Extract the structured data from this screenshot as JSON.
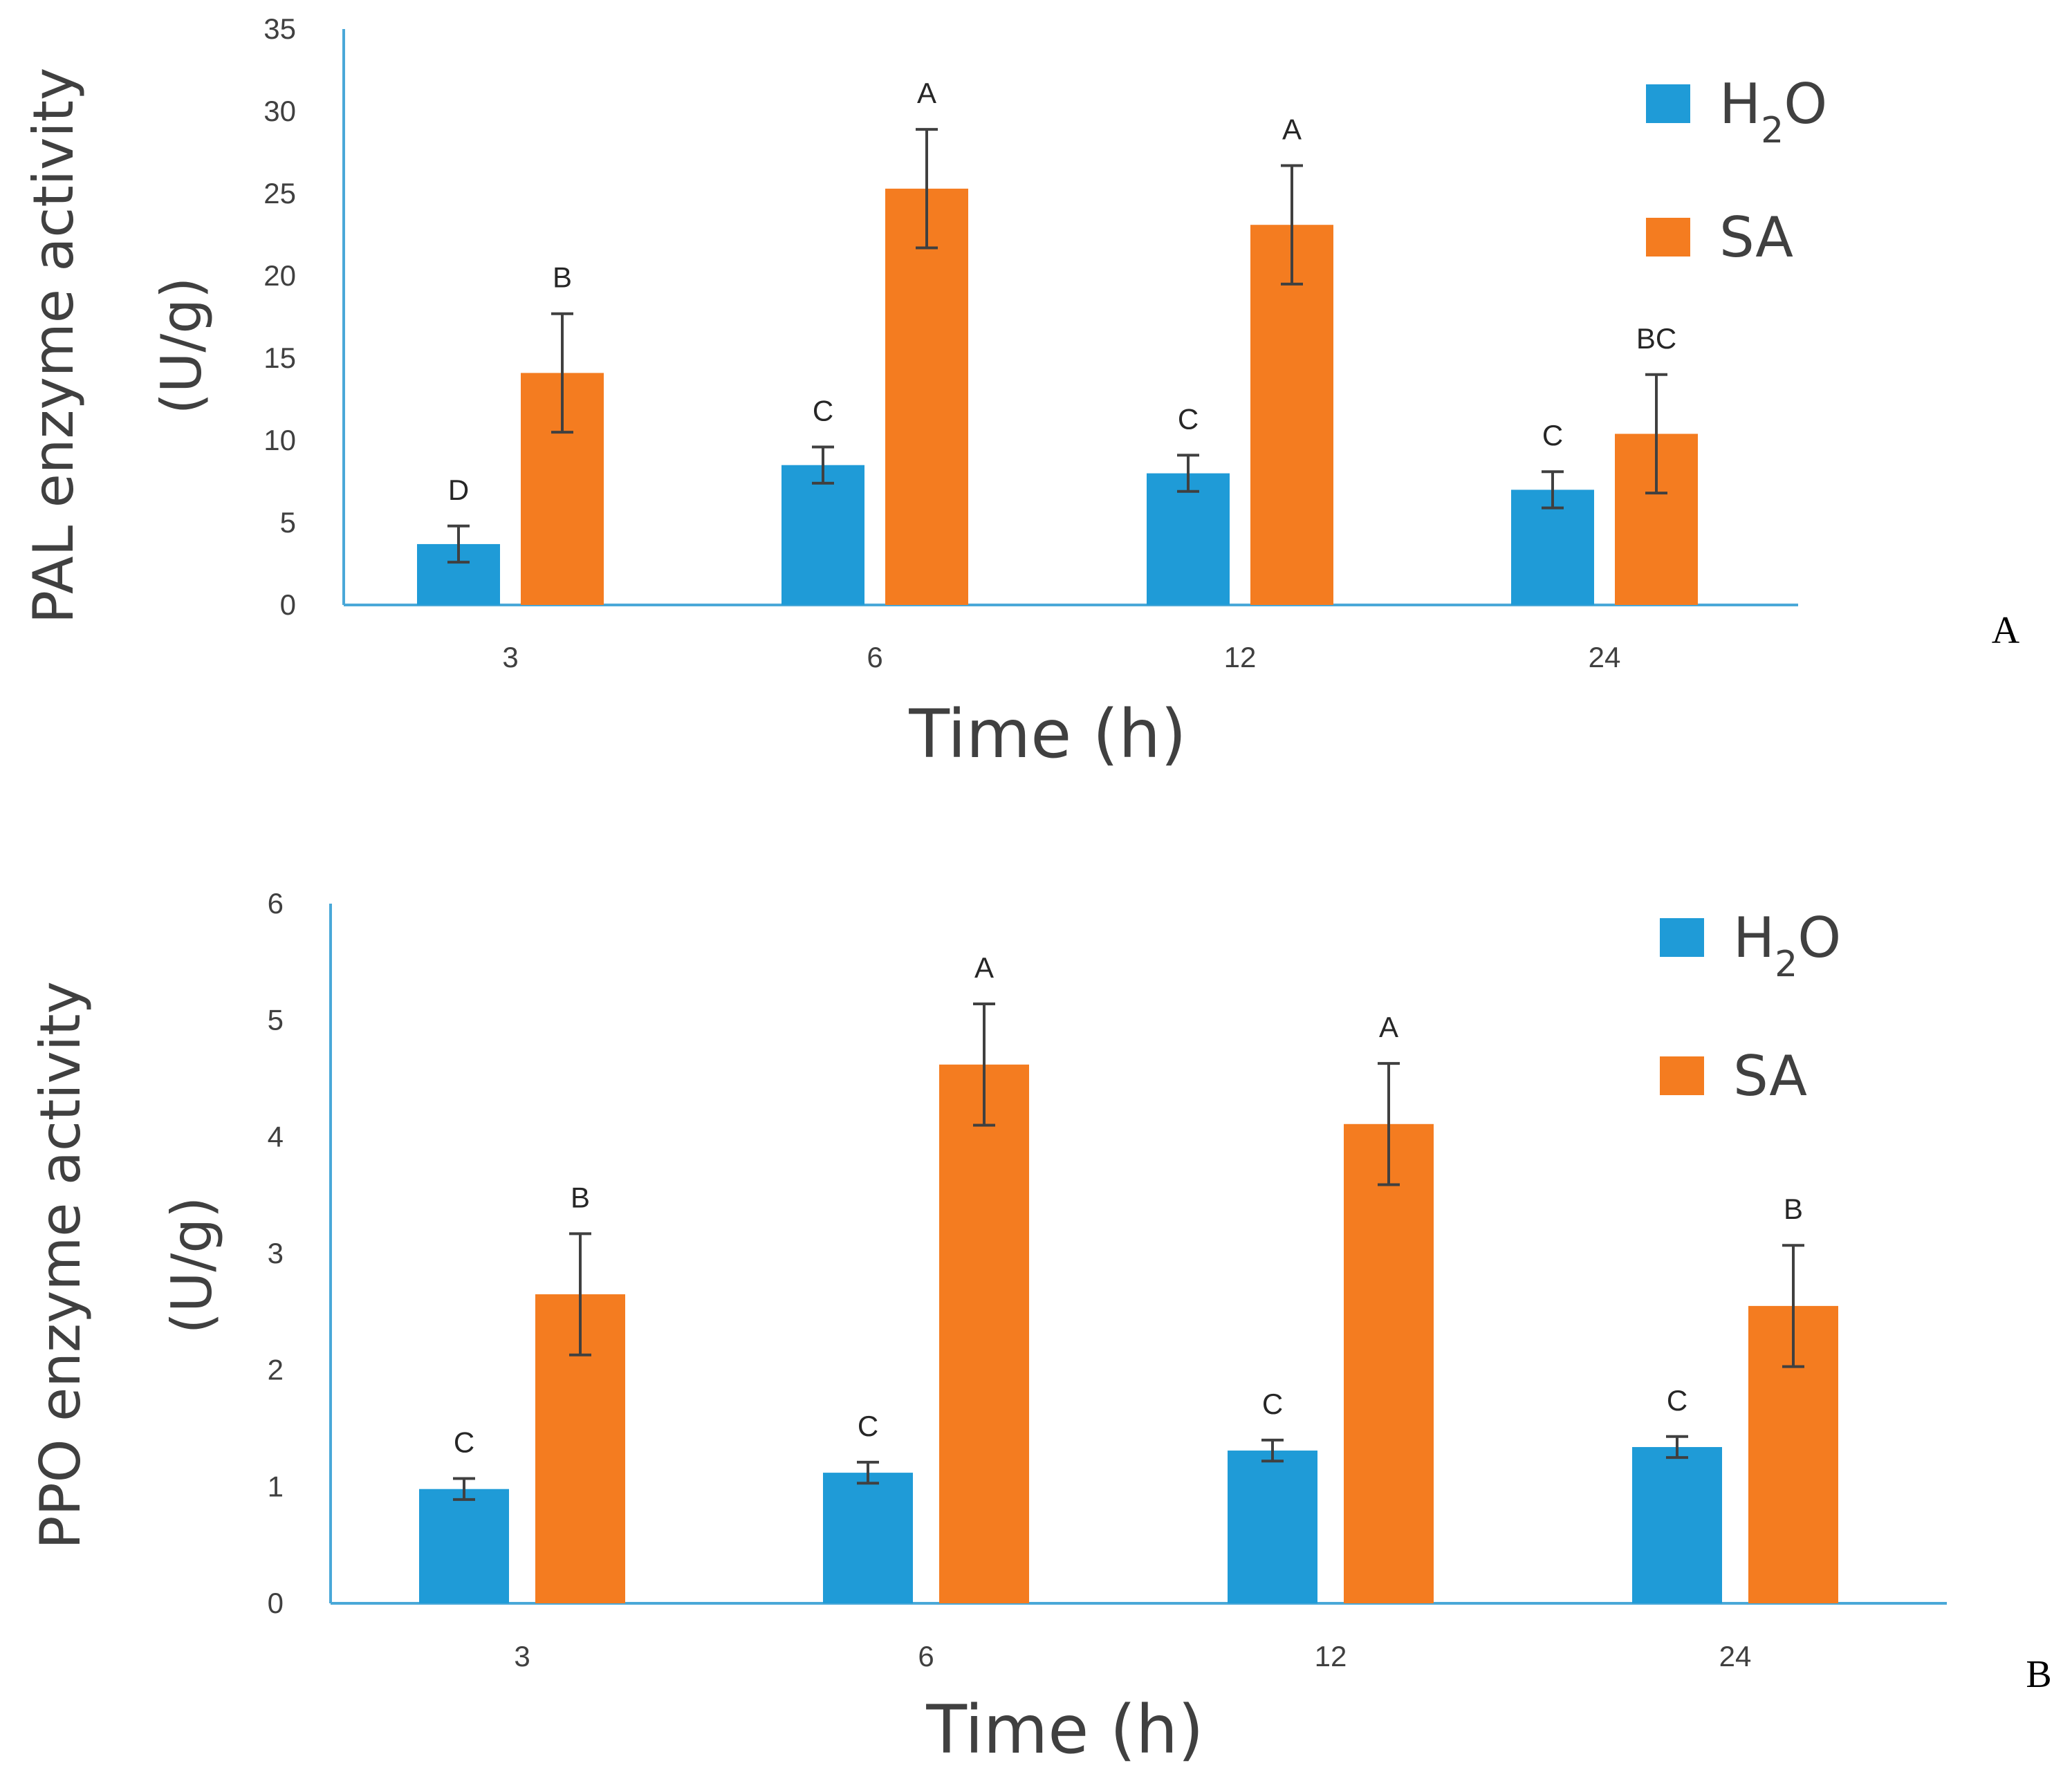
{
  "colors": {
    "h2o": "#1f9bd7",
    "sa": "#f47c20",
    "axis": "#4aa8d8",
    "error": "#404040"
  },
  "chart_data": [
    {
      "type": "bar",
      "panel_label": "A",
      "xlabel": "Time (h)",
      "ylabel_line1": "PAL enzyme activity",
      "ylabel_line2": "(U/g)",
      "ylim": [
        0,
        35
      ],
      "yticks": [
        "0",
        "5",
        "10",
        "15",
        "20",
        "25",
        "30",
        "35"
      ],
      "categories": [
        "3",
        "6",
        "12",
        "24"
      ],
      "series": [
        {
          "name": "H2O",
          "legend_main": "H",
          "legend_sub": "2",
          "legend_tail": "O",
          "color_key": "h2o",
          "values": [
            3.7,
            8.5,
            8.0,
            7.0
          ],
          "errors": [
            1.1,
            1.1,
            1.1,
            1.1
          ],
          "letters": [
            "D",
            "C",
            "C",
            "C"
          ]
        },
        {
          "name": "SA",
          "legend_main": "SA",
          "legend_sub": "",
          "legend_tail": "",
          "color_key": "sa",
          "values": [
            14.1,
            25.3,
            23.1,
            10.4
          ],
          "errors": [
            3.6,
            3.6,
            3.6,
            3.6
          ],
          "letters": [
            "B",
            "A",
            "A",
            "BC"
          ]
        }
      ],
      "grid": false,
      "legend_position": "top-right"
    },
    {
      "type": "bar",
      "panel_label": "B",
      "xlabel": "Time (h)",
      "ylabel_line1": "PPO enzyme activity",
      "ylabel_line2": "(U/g)",
      "ylim": [
        0,
        6
      ],
      "yticks": [
        "0",
        "1",
        "2",
        "3",
        "4",
        "5",
        "6"
      ],
      "categories": [
        "3",
        "6",
        "12",
        "24"
      ],
      "series": [
        {
          "name": "H2O",
          "legend_main": "H",
          "legend_sub": "2",
          "legend_tail": "O",
          "color_key": "h2o",
          "values": [
            0.98,
            1.12,
            1.31,
            1.34
          ],
          "errors": [
            0.09,
            0.09,
            0.09,
            0.09
          ],
          "letters": [
            "C",
            "C",
            "C",
            "C"
          ]
        },
        {
          "name": "SA",
          "legend_main": "SA",
          "legend_sub": "",
          "legend_tail": "",
          "color_key": "sa",
          "values": [
            2.65,
            4.62,
            4.11,
            2.55
          ],
          "errors": [
            0.52,
            0.52,
            0.52,
            0.52
          ],
          "letters": [
            "B",
            "A",
            "A",
            "B"
          ]
        }
      ],
      "grid": false,
      "legend_position": "top-right"
    }
  ]
}
